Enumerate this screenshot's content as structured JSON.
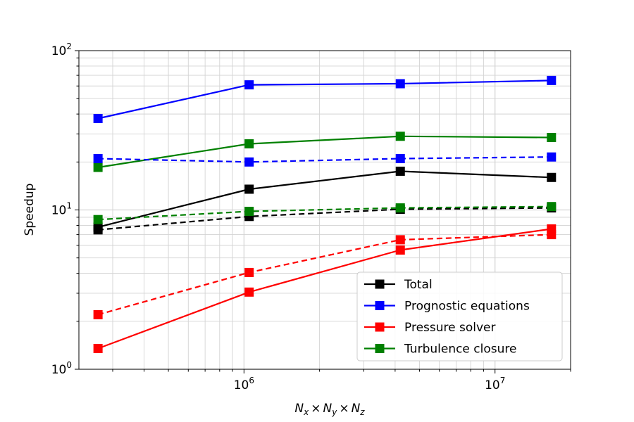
{
  "chart_data": {
    "type": "line",
    "xscale": "log",
    "yscale": "log",
    "xlim": [
      220000,
      20000000
    ],
    "ylim": [
      1,
      100
    ],
    "grid": true,
    "legend_position": "lower-right",
    "xlabel": {
      "N": "N",
      "x": "x",
      "y": "y",
      "z": "z",
      "times": "×"
    },
    "ylabel": "Speedup",
    "x_ticks": [
      {
        "base": "10",
        "exp": "6",
        "value": 1000000
      },
      {
        "base": "10",
        "exp": "7",
        "value": 10000000
      }
    ],
    "y_ticks": [
      {
        "base": "10",
        "exp": "0",
        "value": 1
      },
      {
        "base": "10",
        "exp": "1",
        "value": 10
      },
      {
        "base": "10",
        "exp": "2",
        "value": 100
      }
    ],
    "x": [
      262144,
      1048576,
      4194304,
      16777216
    ],
    "series": [
      {
        "name": "Total",
        "color": "#000000",
        "style": "solid",
        "values": [
          7.8,
          13.5,
          17.5,
          16.0
        ]
      },
      {
        "name": "Prognostic equations",
        "color": "#0000ff",
        "style": "solid",
        "values": [
          37.5,
          61.0,
          62.0,
          65.0
        ]
      },
      {
        "name": "Pressure solver",
        "color": "#ff0000",
        "style": "solid",
        "values": [
          1.35,
          3.05,
          5.6,
          7.6
        ]
      },
      {
        "name": "Turbulence closure",
        "color": "#008000",
        "style": "solid",
        "values": [
          18.5,
          26.0,
          29.0,
          28.5
        ]
      },
      {
        "color": "#000000",
        "style": "dashed",
        "values": [
          7.5,
          9.1,
          10.1,
          10.3
        ]
      },
      {
        "color": "#0000ff",
        "style": "dashed",
        "values": [
          21.0,
          20.0,
          21.0,
          21.5
        ]
      },
      {
        "color": "#ff0000",
        "style": "dashed",
        "values": [
          2.2,
          4.05,
          6.5,
          7.0
        ]
      },
      {
        "color": "#008000",
        "style": "dashed",
        "values": [
          8.7,
          9.8,
          10.3,
          10.5
        ]
      }
    ]
  }
}
